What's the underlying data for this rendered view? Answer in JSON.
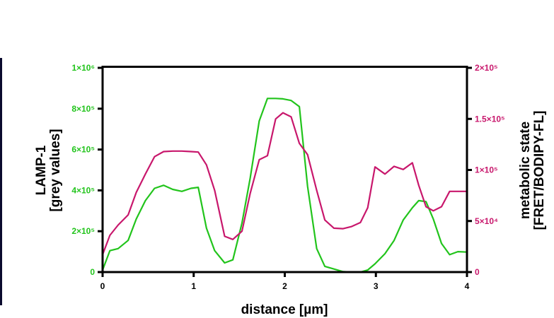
{
  "colors": {
    "lamp1": "#22c41c",
    "metabolic": "#c8176c",
    "axis": "#000000"
  },
  "axes": {
    "x_title": "distance [µm]",
    "y_left_title_line1": "LAMP-1",
    "y_left_title_line2": "[grey values]",
    "y_right_title_line1": "metabolic state",
    "y_right_title_line2": "[FRET/BODIPY-FL]"
  },
  "chart_data": {
    "type": "line",
    "xlabel": "distance [µm]",
    "ylabel": "LAMP-1 [grey values]",
    "y2label": "metabolic state [FRET/BODIPY-FL]",
    "xlim": [
      0,
      4
    ],
    "ylim": [
      0,
      1000000
    ],
    "y2lim": [
      0,
      200000
    ],
    "x_ticks": [
      "0",
      "1",
      "2",
      "3",
      "4"
    ],
    "y_ticks_left": [
      {
        "value": 0,
        "label": "0"
      },
      {
        "value": 200000,
        "label": "2×10⁵"
      },
      {
        "value": 400000,
        "label": "4×10⁵"
      },
      {
        "value": 600000,
        "label": "6×10⁵"
      },
      {
        "value": 800000,
        "label": "8×10⁵"
      },
      {
        "value": 1000000,
        "label": "1×10⁶"
      }
    ],
    "y_ticks_right": [
      {
        "value": 0,
        "label": "0"
      },
      {
        "value": 50000,
        "label": "5×10⁴"
      },
      {
        "value": 100000,
        "label": "1×10⁵"
      },
      {
        "value": 150000,
        "label": "1.5×10⁵"
      },
      {
        "value": 200000,
        "label": "2×10⁵"
      }
    ],
    "legend": "none",
    "grid": false,
    "series": [
      {
        "axis": "left",
        "color": "#22c41c",
        "x": [
          0,
          0.08,
          0.17,
          0.28,
          0.37,
          0.47,
          0.57,
          0.67,
          0.77,
          0.87,
          0.97,
          1.05,
          1.14,
          1.23,
          1.34,
          1.43,
          1.53,
          1.62,
          1.72,
          1.81,
          1.9,
          1.98,
          2.07,
          2.16,
          2.25,
          2.35,
          2.44,
          2.54,
          2.64,
          2.73,
          2.83,
          2.91,
          2.99,
          3.1,
          3.2,
          3.3,
          3.4,
          3.47,
          3.55,
          3.63,
          3.72,
          3.81,
          3.9,
          4.0
        ],
        "y": [
          10000,
          105000,
          115000,
          155000,
          260000,
          350000,
          410000,
          425000,
          405000,
          395000,
          410000,
          415000,
          215000,
          105000,
          45000,
          60000,
          240000,
          460000,
          740000,
          850000,
          850000,
          848000,
          840000,
          810000,
          420000,
          115000,
          28000,
          15000,
          2000,
          0,
          0,
          10000,
          40000,
          90000,
          155000,
          255000,
          315000,
          350000,
          345000,
          260000,
          140000,
          85000,
          100000,
          98000
        ]
      },
      {
        "axis": "right",
        "color": "#c8176c",
        "x": [
          0,
          0.08,
          0.17,
          0.28,
          0.37,
          0.47,
          0.57,
          0.67,
          0.77,
          0.87,
          0.97,
          1.05,
          1.14,
          1.23,
          1.34,
          1.43,
          1.53,
          1.62,
          1.72,
          1.81,
          1.9,
          1.98,
          2.07,
          2.16,
          2.25,
          2.35,
          2.44,
          2.54,
          2.64,
          2.73,
          2.83,
          2.91,
          2.99,
          3.1,
          3.2,
          3.3,
          3.4,
          3.47,
          3.55,
          3.63,
          3.72,
          3.81,
          3.9,
          4.0
        ],
        "y": [
          17000,
          36000,
          46000,
          56000,
          78000,
          96000,
          113000,
          118000,
          118500,
          118500,
          118000,
          117500,
          105000,
          80000,
          35000,
          32000,
          40000,
          77000,
          110000,
          114000,
          150000,
          156000,
          152000,
          126000,
          115000,
          80000,
          51000,
          43000,
          42500,
          44500,
          48500,
          63000,
          103000,
          96000,
          103500,
          100500,
          107000,
          85000,
          64000,
          60000,
          64000,
          79000,
          79000,
          79000
        ]
      }
    ]
  }
}
